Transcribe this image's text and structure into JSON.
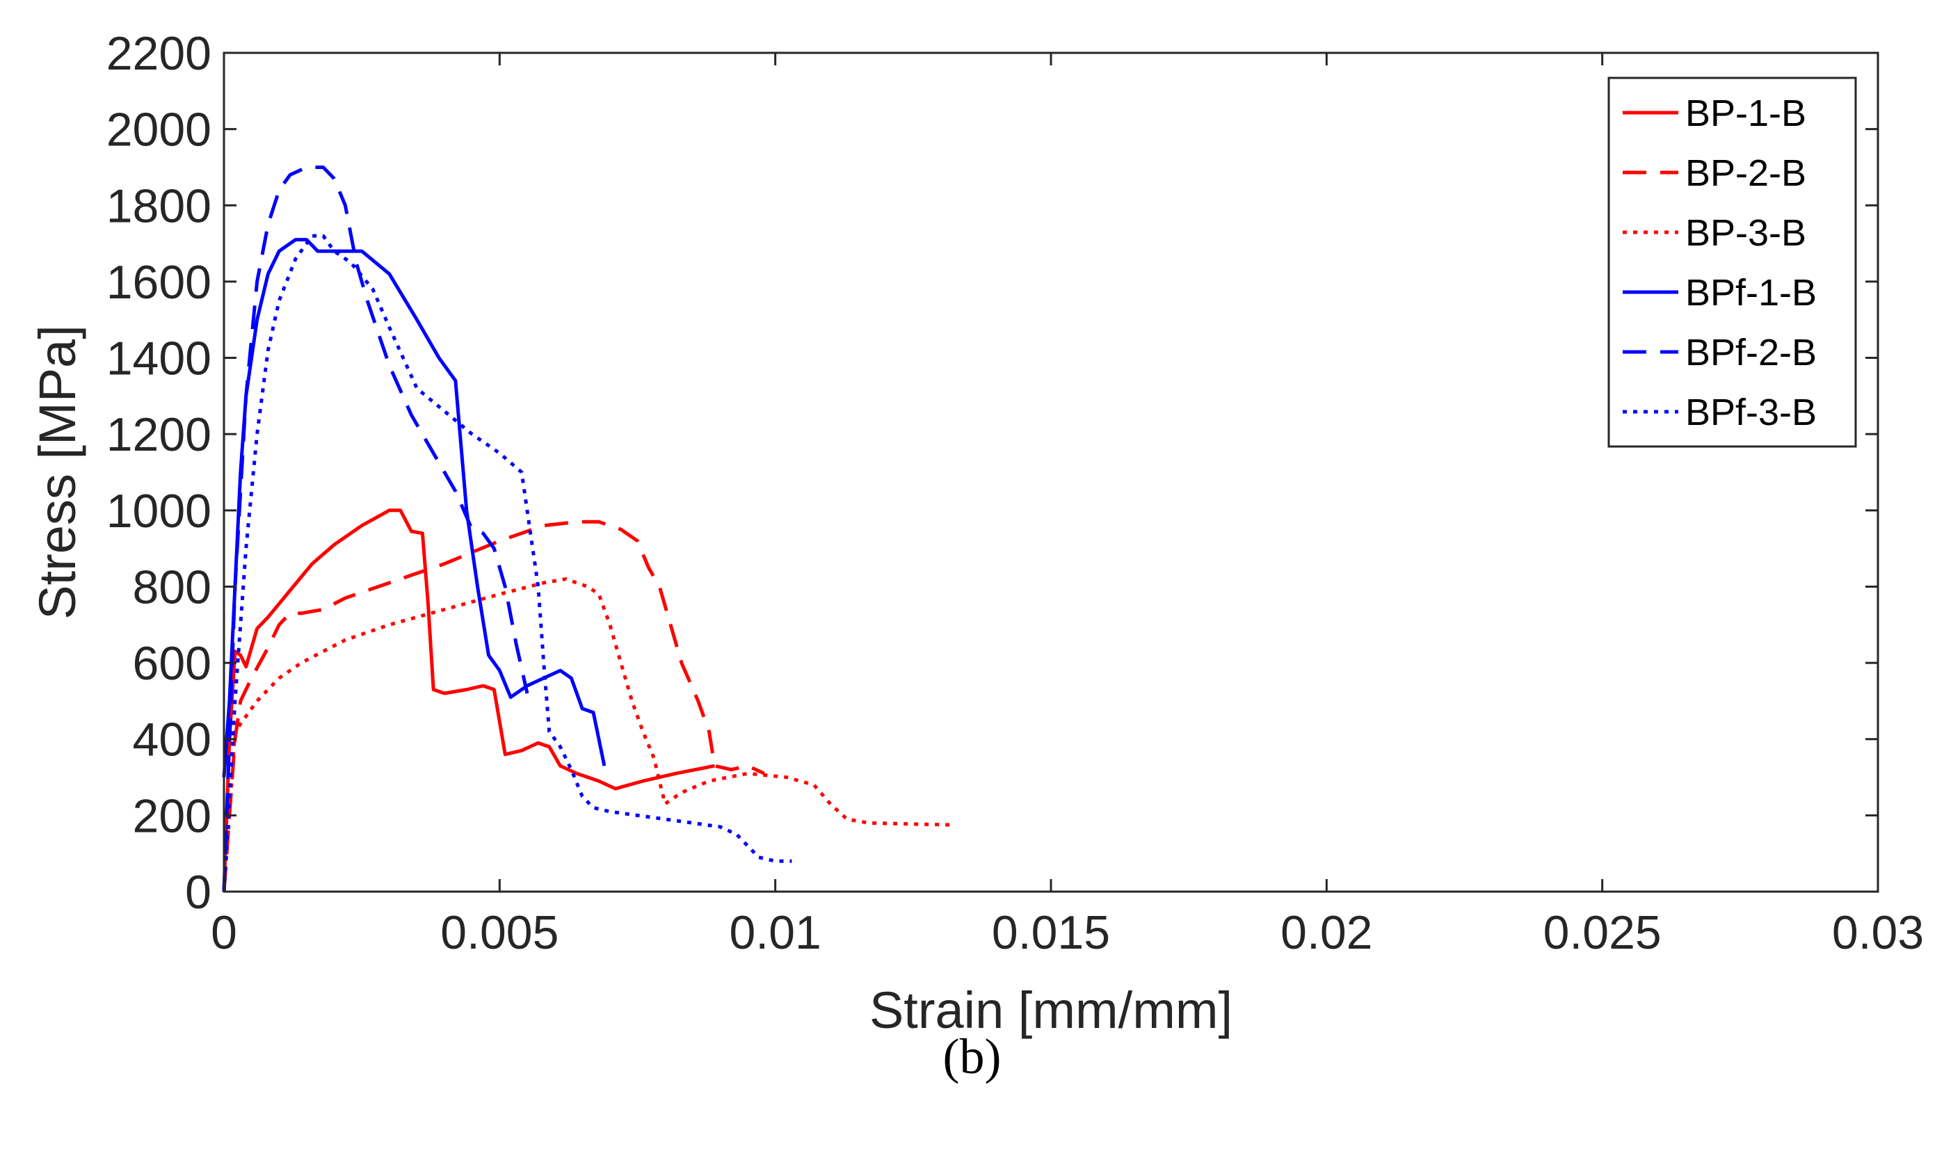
{
  "caption": "(b)",
  "chart_data": {
    "type": "line",
    "title": "",
    "xlabel": "Strain [mm/mm]",
    "ylabel": "Stress [MPa]",
    "xlim": [
      0,
      0.03
    ],
    "ylim": [
      0,
      2200
    ],
    "xticks": [
      0,
      0.005,
      0.01,
      0.015,
      0.02,
      0.025,
      0.03
    ],
    "xtick_labels": [
      "0",
      "0.005",
      "0.01",
      "0.015",
      "0.02",
      "0.025",
      "0.03"
    ],
    "yticks": [
      0,
      200,
      400,
      600,
      800,
      1000,
      1200,
      1400,
      1600,
      1800,
      2000,
      2200
    ],
    "ytick_labels": [
      "0",
      "200",
      "400",
      "600",
      "800",
      "1000",
      "1200",
      "1400",
      "1600",
      "1800",
      "2000",
      "2200"
    ],
    "grid": false,
    "legend_position": "top-right",
    "series": [
      {
        "name": "BP-1-B",
        "color": "#ff0000",
        "style": "solid",
        "x": [
          0,
          0.0001,
          0.0002,
          0.0003,
          0.0004,
          0.0006,
          0.0008,
          0.0012,
          0.0016,
          0.002,
          0.0025,
          0.003,
          0.0032,
          0.0034,
          0.0036,
          0.0037,
          0.0038,
          0.004,
          0.0044,
          0.0047,
          0.0049,
          0.0051,
          0.0054,
          0.0057,
          0.0059,
          0.0061,
          0.0064,
          0.0068,
          0.0071,
          0.0076,
          0.0082,
          0.0089
        ],
        "y": [
          0,
          400,
          630,
          620,
          590,
          690,
          720,
          790,
          860,
          910,
          960,
          1000,
          1000,
          945,
          940,
          760,
          530,
          520,
          530,
          540,
          530,
          360,
          370,
          390,
          380,
          330,
          310,
          290,
          270,
          290,
          310,
          330
        ]
      },
      {
        "name": "BP-2-B",
        "color": "#ff0000",
        "style": "dashed",
        "x": [
          0,
          0.0001,
          0.0002,
          0.0003,
          0.0005,
          0.0008,
          0.001,
          0.0012,
          0.0014,
          0.0018,
          0.0022,
          0.003,
          0.004,
          0.005,
          0.0058,
          0.0064,
          0.0068,
          0.007,
          0.0072,
          0.0075,
          0.0077,
          0.0079,
          0.0081,
          0.0083,
          0.0086,
          0.0088,
          0.0089,
          0.0092,
          0.0095,
          0.0098
        ],
        "y": [
          0,
          200,
          400,
          500,
          560,
          640,
          700,
          730,
          730,
          740,
          770,
          810,
          860,
          920,
          960,
          970,
          970,
          960,
          950,
          920,
          850,
          800,
          700,
          600,
          500,
          420,
          330,
          320,
          330,
          310
        ]
      },
      {
        "name": "BP-3-B",
        "color": "#ff0000",
        "style": "dotted",
        "x": [
          0,
          0.0001,
          0.0002,
          0.0004,
          0.0006,
          0.0008,
          0.001,
          0.0014,
          0.0018,
          0.0022,
          0.003,
          0.004,
          0.005,
          0.0058,
          0.0062,
          0.0066,
          0.0068,
          0.007,
          0.0072,
          0.0074,
          0.0076,
          0.0078,
          0.008,
          0.0083,
          0.0088,
          0.0095,
          0.0102,
          0.0107,
          0.011,
          0.0113,
          0.0117,
          0.0132
        ],
        "y": [
          0,
          200,
          420,
          460,
          500,
          530,
          560,
          600,
          630,
          660,
          700,
          740,
          780,
          810,
          820,
          800,
          780,
          700,
          600,
          500,
          420,
          350,
          230,
          260,
          290,
          310,
          300,
          280,
          230,
          190,
          180,
          175
        ]
      },
      {
        "name": "BPf-1-B",
        "color": "#0000ff",
        "style": "solid",
        "x": [
          0,
          0.0001,
          0.0002,
          0.0003,
          0.0004,
          0.0006,
          0.0008,
          0.001,
          0.0013,
          0.0015,
          0.0017,
          0.002,
          0.0025,
          0.003,
          0.0035,
          0.0039,
          0.0042,
          0.0044,
          0.0046,
          0.0048,
          0.005,
          0.0052,
          0.0055,
          0.0058,
          0.0061,
          0.0063,
          0.0065,
          0.0067,
          0.0069
        ],
        "y": [
          300,
          500,
          800,
          1100,
          1300,
          1500,
          1620,
          1680,
          1710,
          1710,
          1680,
          1680,
          1680,
          1620,
          1500,
          1400,
          1340,
          1000,
          800,
          620,
          580,
          510,
          540,
          560,
          580,
          560,
          480,
          470,
          330
        ]
      },
      {
        "name": "BPf-2-B",
        "color": "#0000ff",
        "style": "dashed",
        "x": [
          0,
          0.0001,
          0.0002,
          0.0004,
          0.0006,
          0.0008,
          0.001,
          0.0012,
          0.0015,
          0.0018,
          0.002,
          0.0022,
          0.0024,
          0.0026,
          0.003,
          0.0034,
          0.0038,
          0.0042,
          0.0045,
          0.0047,
          0.0049,
          0.0051,
          0.0053,
          0.0055
        ],
        "y": [
          0,
          400,
          800,
          1300,
          1600,
          1750,
          1840,
          1880,
          1900,
          1900,
          1870,
          1800,
          1650,
          1550,
          1380,
          1250,
          1150,
          1050,
          950,
          940,
          900,
          800,
          650,
          520
        ]
      },
      {
        "name": "BPf-3-B",
        "color": "#0000ff",
        "style": "dotted",
        "x": [
          0,
          0.0002,
          0.0004,
          0.0006,
          0.0008,
          0.001,
          0.0013,
          0.0016,
          0.0018,
          0.002,
          0.0023,
          0.0027,
          0.003,
          0.0035,
          0.004,
          0.0045,
          0.005,
          0.0054,
          0.0057,
          0.0058,
          0.0059,
          0.006,
          0.0061,
          0.0063,
          0.0065,
          0.0067,
          0.007,
          0.0075,
          0.008,
          0.0085,
          0.009,
          0.0093,
          0.0095,
          0.0097,
          0.01,
          0.0103
        ],
        "y": [
          0,
          500,
          900,
          1200,
          1420,
          1550,
          1660,
          1720,
          1720,
          1680,
          1650,
          1580,
          1480,
          1320,
          1260,
          1200,
          1150,
          1100,
          800,
          600,
          420,
          400,
          380,
          320,
          250,
          220,
          210,
          200,
          190,
          180,
          170,
          150,
          120,
          90,
          80,
          80
        ]
      }
    ]
  }
}
